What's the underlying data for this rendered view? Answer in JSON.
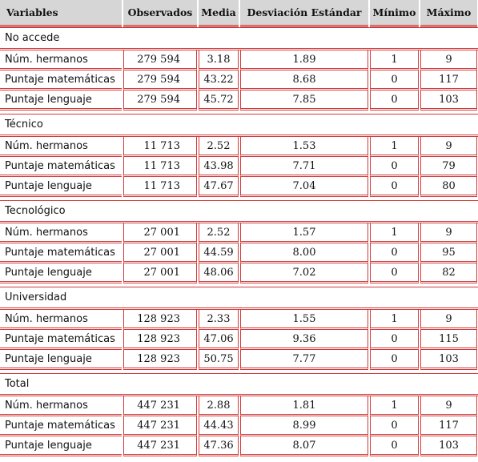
{
  "header": [
    "Variables",
    "Observados",
    "Media",
    "Desviación Estándar",
    "Mínimo",
    "Máximo"
  ],
  "groups": [
    {
      "name": "No accede",
      "rows": [
        [
          "Núm. hermanos",
          "279 594",
          "3.18",
          "1.89",
          "1",
          "9"
        ],
        [
          "Puntaje matemáticas",
          "279 594",
          "43.22",
          "8.68",
          "0",
          "117"
        ],
        [
          "Puntaje lenguaje",
          "279 594",
          "45.72",
          "7.85",
          "0",
          "103"
        ]
      ]
    },
    {
      "name": "Técnico",
      "rows": [
        [
          "Núm. hermanos",
          "11 713",
          "2.52",
          "1.53",
          "1",
          "9"
        ],
        [
          "Puntaje matemáticas",
          "11 713",
          "43.98",
          "7.71",
          "0",
          "79"
        ],
        [
          "Puntaje lenguaje",
          "11 713",
          "47.67",
          "7.04",
          "0",
          "80"
        ]
      ]
    },
    {
      "name": "Tecnológico",
      "rows": [
        [
          "Núm. hermanos",
          "27 001",
          "2.52",
          "1.57",
          "1",
          "9"
        ],
        [
          "Puntaje matemáticas",
          "27 001",
          "44.59",
          "8.00",
          "0",
          "95"
        ],
        [
          "Puntaje lenguaje",
          "27 001",
          "48.06",
          "7.02",
          "0",
          "82"
        ]
      ]
    },
    {
      "name": "Universidad",
      "rows": [
        [
          "Núm. hermanos",
          "128 923",
          "2.33",
          "1.55",
          "1",
          "9"
        ],
        [
          "Puntaje matemáticas",
          "128 923",
          "47.06",
          "9.36",
          "0",
          "115"
        ],
        [
          "Puntaje lenguaje",
          "128 923",
          "50.75",
          "7.77",
          "0",
          "103"
        ]
      ]
    },
    {
      "name": "Total",
      "rows": [
        [
          "Núm. hermanos",
          "447 231",
          "2.88",
          "1.81",
          "1",
          "9"
        ],
        [
          "Puntaje matemáticas",
          "447 231",
          "44.43",
          "8.99",
          "0",
          "117"
        ],
        [
          "Puntaje lenguaje",
          "447 231",
          "47.36",
          "8.07",
          "0",
          "103"
        ]
      ]
    }
  ]
}
